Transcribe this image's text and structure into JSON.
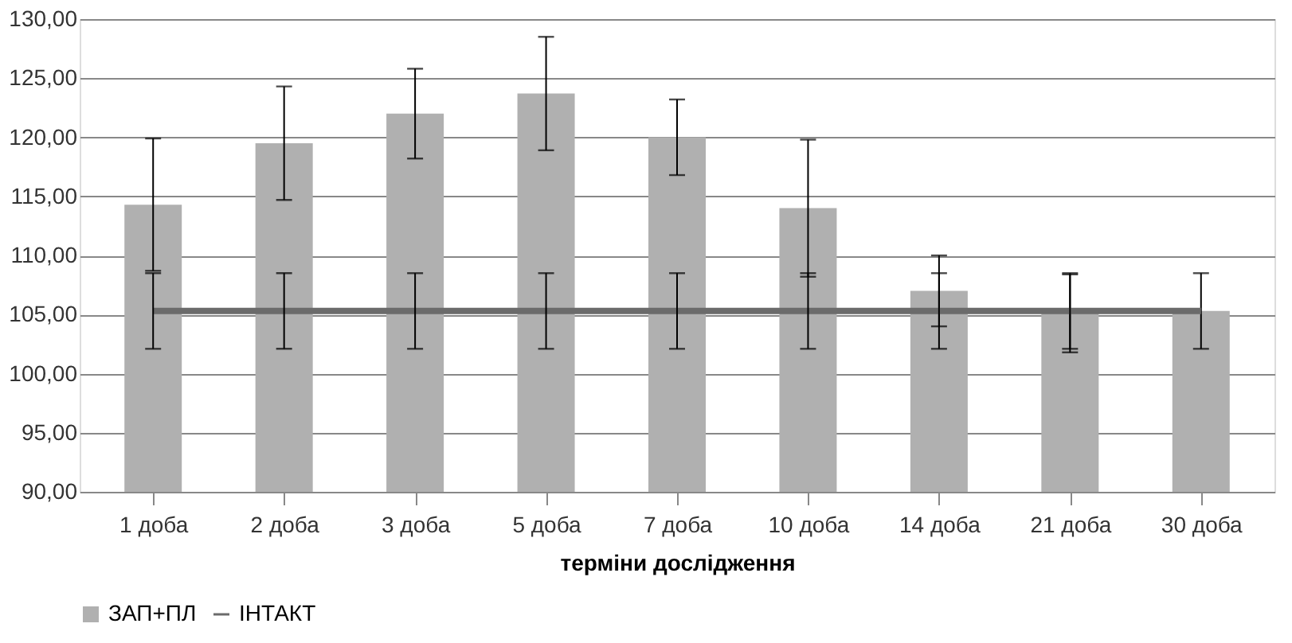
{
  "chart_data": {
    "type": "bar",
    "xlabel": "терміни дослідження",
    "categories": [
      "1 доба",
      "2 доба",
      "3 доба",
      "5 доба",
      "7 доба",
      "10 доба",
      "14 доба",
      "21 доба",
      "30 доба"
    ],
    "series": [
      {
        "name": "ЗАП+ПЛ",
        "color": "#b0b0b0",
        "values": [
          114.3,
          119.5,
          122.0,
          123.7,
          120.0,
          114.0,
          107.0,
          105.1,
          105.3
        ],
        "errors": [
          5.6,
          4.8,
          3.8,
          4.8,
          3.2,
          5.8,
          3.0,
          3.3,
          3.2
        ]
      },
      {
        "name": "ІНТАКТ",
        "type": "line",
        "color": "#6b6b6b",
        "values": [
          105.3,
          105.3,
          105.3,
          105.3,
          105.3,
          105.3,
          105.3,
          105.3,
          105.3
        ],
        "errors": [
          3.2,
          3.2,
          3.2,
          3.2,
          3.2,
          3.2,
          3.2,
          3.2,
          null
        ]
      }
    ],
    "ylim": [
      90,
      130
    ],
    "yticks": [
      {
        "value": 90,
        "label": "90,00"
      },
      {
        "value": 95,
        "label": "95,00"
      },
      {
        "value": 100,
        "label": "100,00"
      },
      {
        "value": 105,
        "label": "105,00"
      },
      {
        "value": 110,
        "label": "110,00"
      },
      {
        "value": 115,
        "label": "115,00"
      },
      {
        "value": 120,
        "label": "120,00"
      },
      {
        "value": 125,
        "label": "125,00"
      },
      {
        "value": 130,
        "label": "130,00"
      }
    ],
    "grid": "y",
    "legend": "bottom",
    "marker": "none",
    "line_style": "solid"
  }
}
